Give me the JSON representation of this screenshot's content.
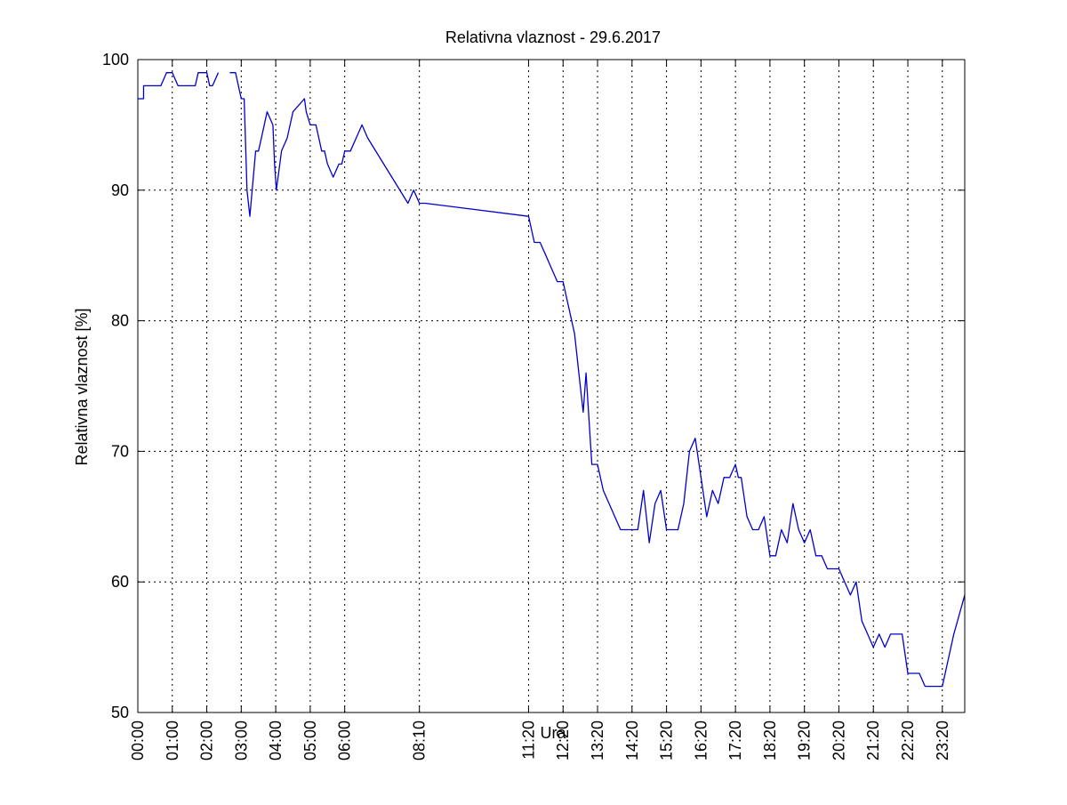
{
  "chart_data": {
    "type": "line",
    "title": "Relativna vlaznost - 29.6.2017",
    "xlabel": "Ura",
    "ylabel": "Relativna vlaznost [%]",
    "xlim": [
      "00:00",
      "23:59"
    ],
    "ylim": [
      50,
      100
    ],
    "yticks": [
      50,
      60,
      70,
      80,
      90,
      100
    ],
    "xticks": [
      "00:00",
      "01:00",
      "02:00",
      "03:00",
      "04:00",
      "05:00",
      "06:00",
      "08:10",
      "11:20",
      "12:20",
      "13:20",
      "14:20",
      "15:20",
      "16:20",
      "17:20",
      "18:20",
      "19:20",
      "20:20",
      "21:20",
      "22:20",
      "23:20"
    ],
    "grid": true,
    "legend": "none",
    "line_color": "#0000cc",
    "series": [
      {
        "segments": [
          {
            "x": [
              "00:00",
              "00:10",
              "00:10",
              "00:20",
              "00:40",
              "00:50",
              "00:55",
              "01:00",
              "01:10",
              "01:20",
              "01:40",
              "01:45",
              "01:50",
              "02:00",
              "02:05",
              "02:10",
              "02:20"
            ],
            "y": [
              97,
              97,
              98,
              98,
              98,
              99,
              99,
              99,
              98,
              98,
              98,
              99,
              99,
              99,
              98,
              98,
              99
            ]
          },
          {
            "x": [
              "02:40",
              "02:50",
              "02:55",
              "03:00",
              "03:05",
              "03:10",
              "03:15",
              "03:25",
              "03:30",
              "03:35",
              "03:45",
              "03:55",
              "03:58",
              "04:01",
              "04:10",
              "04:20",
              "04:30",
              "04:50",
              "04:53",
              "05:00",
              "05:10",
              "05:20",
              "05:25",
              "05:30",
              "05:40",
              "05:50",
              "05:55",
              "06:00",
              "06:10",
              "06:20",
              "06:30",
              "06:40",
              "07:50",
              "08:00",
              "08:10",
              "08:20",
              "11:20"
            ],
            "y": [
              99,
              99,
              98,
              97,
              97,
              90,
              88,
              93,
              93,
              94,
              96,
              95,
              92,
              90,
              93,
              94,
              96,
              97,
              96,
              95,
              95,
              93,
              93,
              92,
              91,
              92,
              92,
              93,
              93,
              94,
              95,
              94,
              89,
              90,
              89,
              89,
              88
            ]
          },
          {
            "x": [
              "11:20",
              "11:30",
              "11:40",
              "11:50",
              "12:00",
              "12:10",
              "12:20",
              "12:30",
              "12:40",
              "12:50",
              "12:55",
              "13:00",
              "13:10",
              "13:20",
              "13:30",
              "13:40",
              "14:00",
              "14:10",
              "14:20",
              "14:30",
              "14:40",
              "14:50",
              "15:00",
              "15:10",
              "15:20",
              "15:30",
              "15:40",
              "15:50",
              "16:00",
              "16:10",
              "16:20",
              "16:30",
              "16:40",
              "16:50",
              "17:00",
              "17:10",
              "17:20",
              "17:25",
              "17:30",
              "17:40",
              "17:50",
              "18:00",
              "18:10",
              "18:20",
              "18:30",
              "18:40",
              "18:50",
              "19:00",
              "19:10",
              "19:20",
              "19:30",
              "19:40",
              "19:50",
              "20:00",
              "20:10",
              "20:20",
              "20:30",
              "20:40",
              "20:50",
              "21:00",
              "21:10",
              "21:20",
              "21:30",
              "21:40",
              "21:50",
              "22:00",
              "22:10",
              "22:20",
              "22:30",
              "22:40",
              "22:50",
              "23:00",
              "23:10",
              "23:20",
              "23:40",
              "23:59"
            ],
            "y": [
              88,
              86,
              86,
              85,
              84,
              83,
              83,
              81,
              79,
              75,
              73,
              76,
              69,
              69,
              67,
              66,
              64,
              64,
              64,
              64,
              67,
              63,
              66,
              67,
              64,
              64,
              64,
              66,
              70,
              71,
              68,
              65,
              67,
              66,
              68,
              68,
              69,
              68,
              68,
              65,
              64,
              64,
              65,
              62,
              62,
              64,
              63,
              66,
              64,
              63,
              64,
              62,
              62,
              61,
              61,
              61,
              60,
              59,
              60,
              57,
              56,
              55,
              56,
              55,
              56,
              56,
              56,
              53,
              53,
              53,
              52,
              52,
              52,
              52,
              56,
              59
            ]
          }
        ]
      }
    ]
  }
}
